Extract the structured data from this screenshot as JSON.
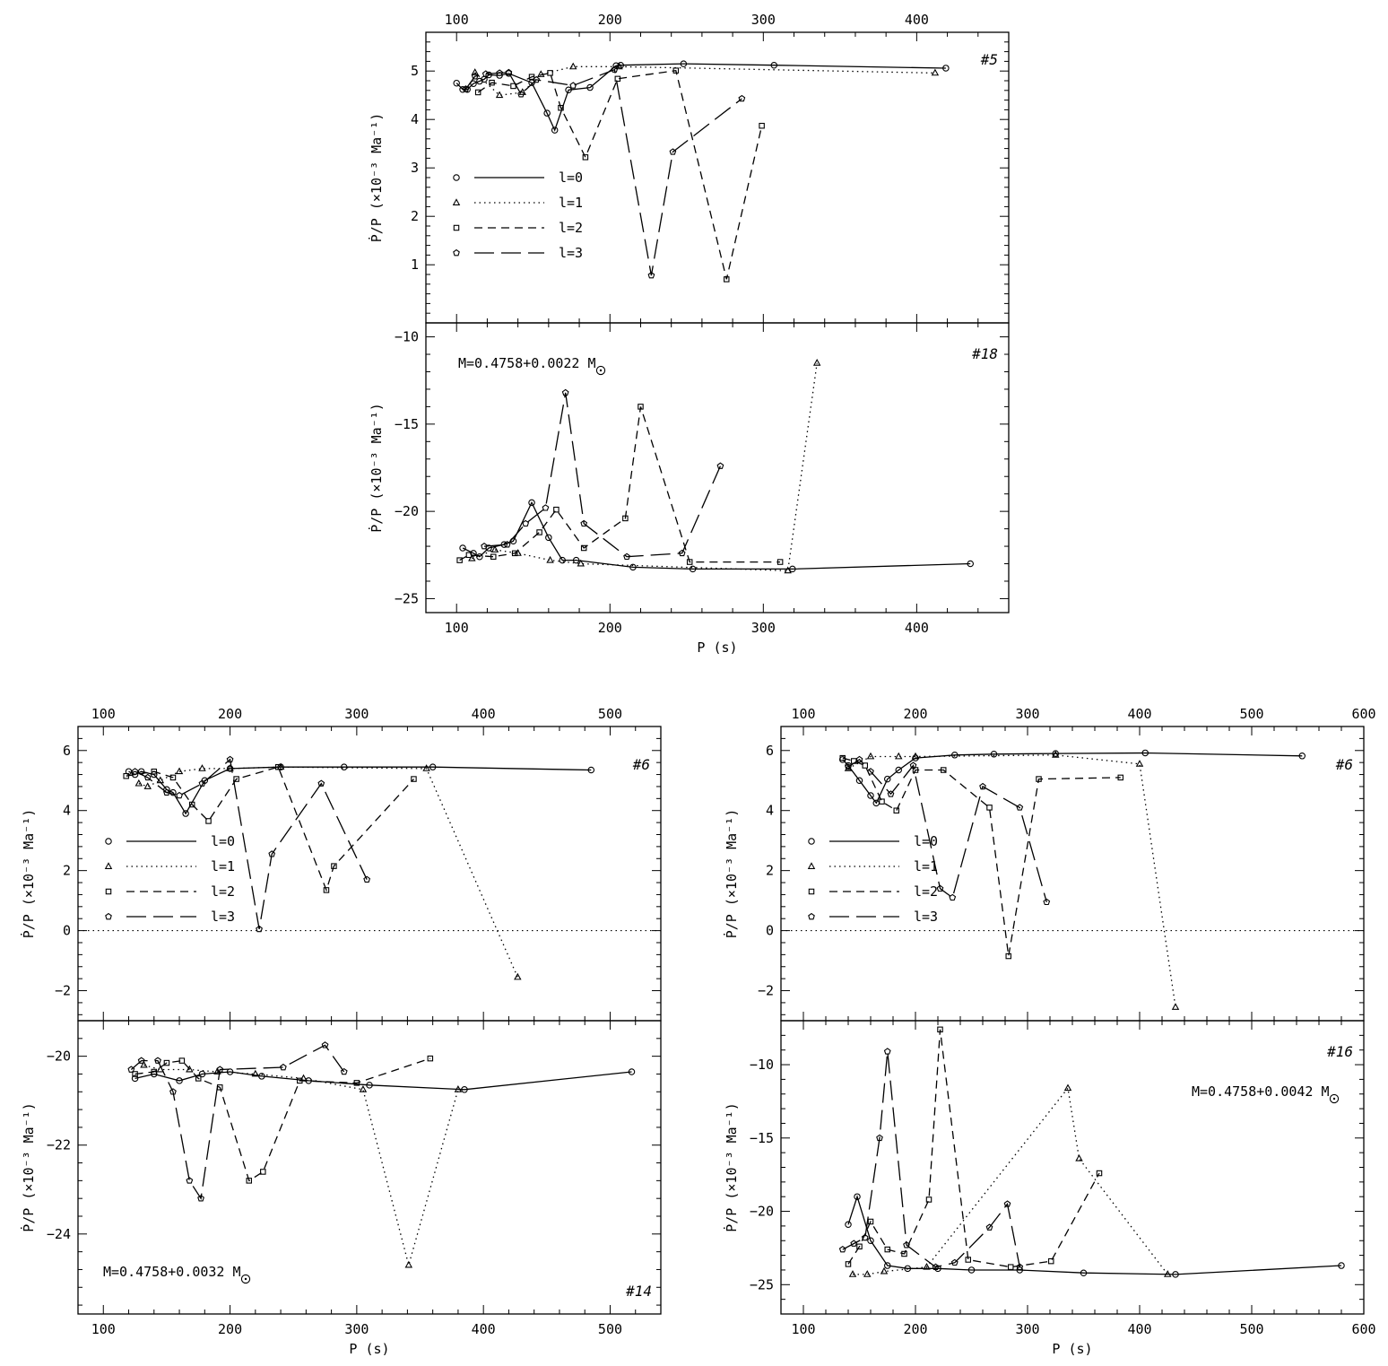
{
  "x_ticks": [
    "100",
    "200",
    "300",
    "400",
    "500",
    "600"
  ],
  "legend_labels": [
    "l=0",
    "l=1",
    "l=2",
    "l=3"
  ],
  "ylabel": "Ṗ/P (×10⁻³ Ma⁻¹)",
  "xlabel": "P (s)",
  "chart_data": [
    {
      "type": "line",
      "panel": "A-top",
      "tag": "#5",
      "xlim": [
        80,
        460
      ],
      "ylim": [
        -0.2,
        5.8
      ],
      "yticks": [
        1,
        2,
        3,
        4,
        5
      ],
      "xticks": [
        100,
        200,
        300,
        400
      ],
      "legend": true,
      "series": [
        {
          "name": "l=0",
          "x": [
            100,
            104,
            107,
            111,
            115,
            118,
            121,
            128,
            134,
            149,
            159,
            164,
            173,
            187,
            204,
            207,
            248,
            307,
            419
          ],
          "y": [
            4.75,
            4.62,
            4.62,
            4.74,
            4.79,
            4.83,
            4.92,
            4.91,
            4.95,
            4.76,
            4.13,
            3.78,
            4.61,
            4.66,
            5.11,
            5.12,
            5.15,
            5.12,
            5.06
          ]
        },
        {
          "name": "l=1",
          "x": [
            112,
            128,
            143,
            155,
            176,
            206,
            412
          ],
          "y": [
            4.97,
            4.5,
            4.56,
            4.93,
            5.09,
            5.09,
            4.96
          ]
        },
        {
          "name": "l=2",
          "x": [
            114,
            123,
            137,
            149,
            161,
            168,
            184,
            205,
            243,
            276,
            299
          ],
          "y": [
            4.56,
            4.76,
            4.69,
            4.88,
            4.96,
            4.24,
            3.22,
            4.84,
            5.01,
            0.7,
            3.87
          ]
        },
        {
          "name": "l=3",
          "x": [
            106,
            112,
            119,
            128,
            134,
            142,
            152,
            176,
            203,
            227,
            241,
            286
          ],
          "y": [
            4.63,
            4.89,
            4.94,
            4.96,
            4.97,
            4.52,
            4.82,
            4.7,
            5.03,
            0.78,
            3.33,
            4.43
          ]
        }
      ]
    },
    {
      "type": "line",
      "panel": "A-bottom",
      "tag": "#18",
      "annotation": "M=0.4758+0.0022 M",
      "xlim": [
        80,
        460
      ],
      "ylim": [
        -25.8,
        -9.2
      ],
      "yticks": [
        -25,
        -20,
        -15,
        -10
      ],
      "xticks": [
        100,
        200,
        300,
        400
      ],
      "xlabel": "P (s)",
      "series": [
        {
          "name": "l=0",
          "x": [
            104,
            111,
            115,
            121,
            131,
            137,
            149,
            160,
            169,
            178,
            215,
            254,
            319,
            435
          ],
          "y": [
            -22.1,
            -22.4,
            -22.6,
            -22.1,
            -21.9,
            -21.7,
            -19.5,
            -21.5,
            -22.8,
            -22.8,
            -23.2,
            -23.3,
            -23.3,
            -23.0
          ]
        },
        {
          "name": "l=1",
          "x": [
            110,
            125,
            140,
            161,
            181,
            316,
            335
          ],
          "y": [
            -22.7,
            -22.2,
            -22.4,
            -22.8,
            -23.0,
            -23.4,
            -11.5
          ]
        },
        {
          "name": "l=2",
          "x": [
            102,
            108,
            124,
            138,
            154,
            165,
            183,
            210,
            220,
            252,
            311
          ],
          "y": [
            -22.8,
            -22.5,
            -22.6,
            -22.4,
            -21.2,
            -19.9,
            -22.1,
            -20.4,
            -14.0,
            -22.9,
            -22.9
          ]
        },
        {
          "name": "l=3",
          "x": [
            118,
            133,
            145,
            158,
            171,
            183,
            211,
            247,
            272
          ],
          "y": [
            -22.0,
            -21.9,
            -20.7,
            -19.8,
            -13.2,
            -20.7,
            -22.6,
            -22.4,
            -17.4
          ]
        }
      ]
    },
    {
      "type": "line",
      "panel": "B-top",
      "tag": "#6",
      "xlim": [
        80,
        540
      ],
      "ylim": [
        -3.0,
        6.8
      ],
      "yticks": [
        -2,
        0,
        2,
        4,
        6
      ],
      "xticks": [
        100,
        200,
        300,
        400,
        500
      ],
      "legend": true,
      "zero_line": true,
      "series": [
        {
          "name": "l=0",
          "x": [
            120,
            125,
            130,
            140,
            150,
            155,
            165,
            180,
            200,
            240,
            290,
            360,
            485
          ],
          "y": [
            5.3,
            5.2,
            5.3,
            5.2,
            4.7,
            4.6,
            3.9,
            5.0,
            5.4,
            5.45,
            5.45,
            5.45,
            5.35
          ]
        },
        {
          "name": "l=1",
          "x": [
            128,
            135,
            145,
            160,
            178,
            200,
            240,
            355,
            427
          ],
          "y": [
            4.9,
            4.8,
            5.0,
            5.3,
            5.4,
            5.4,
            5.45,
            5.4,
            -1.55
          ]
        },
        {
          "name": "l=2",
          "x": [
            118,
            140,
            155,
            170,
            183,
            205,
            238,
            276,
            282,
            345
          ],
          "y": [
            5.15,
            5.3,
            5.1,
            4.2,
            3.65,
            5.05,
            5.45,
            1.35,
            2.15,
            5.05
          ]
        },
        {
          "name": "l=3",
          "x": [
            125,
            135,
            150,
            160,
            178,
            200,
            223,
            233,
            272,
            308
          ],
          "y": [
            5.3,
            5.1,
            4.6,
            4.5,
            4.9,
            5.7,
            0.05,
            2.55,
            4.9,
            1.7
          ]
        }
      ]
    },
    {
      "type": "line",
      "panel": "B-bottom",
      "tag": "#14",
      "annotation": "M=0.4758+0.0032 M",
      "xlim": [
        80,
        540
      ],
      "ylim": [
        -25.8,
        -19.2
      ],
      "yticks": [
        -24,
        -22,
        -20
      ],
      "xticks": [
        100,
        200,
        300,
        400,
        500
      ],
      "xlabel": "P (s)",
      "series": [
        {
          "name": "l=0",
          "x": [
            125,
            140,
            160,
            178,
            200,
            225,
            262,
            310,
            385,
            517
          ],
          "y": [
            -20.5,
            -20.4,
            -20.55,
            -20.4,
            -20.35,
            -20.45,
            -20.55,
            -20.65,
            -20.75,
            -20.35
          ]
        },
        {
          "name": "l=1",
          "x": [
            132,
            145,
            168,
            190,
            220,
            258,
            305,
            341,
            380
          ],
          "y": [
            -20.2,
            -20.3,
            -20.3,
            -20.35,
            -20.4,
            -20.5,
            -20.75,
            -24.7,
            -20.75
          ]
        },
        {
          "name": "l=2",
          "x": [
            125,
            140,
            150,
            162,
            175,
            192,
            215,
            226,
            255,
            300,
            358
          ],
          "y": [
            -20.4,
            -20.35,
            -20.15,
            -20.1,
            -20.5,
            -20.7,
            -22.8,
            -22.6,
            -20.55,
            -20.6,
            -20.05
          ]
        },
        {
          "name": "l=3",
          "x": [
            122,
            130,
            143,
            155,
            168,
            177,
            192,
            242,
            275,
            290
          ],
          "y": [
            -20.3,
            -20.1,
            -20.1,
            -20.8,
            -22.8,
            -23.2,
            -20.3,
            -20.25,
            -19.75,
            -20.35
          ]
        }
      ]
    },
    {
      "type": "line",
      "panel": "C-top",
      "tag": "#6",
      "xlim": [
        80,
        600
      ],
      "ylim": [
        -3.0,
        6.8
      ],
      "yticks": [
        -2,
        0,
        2,
        4,
        6
      ],
      "xticks": [
        100,
        200,
        300,
        400,
        500,
        600
      ],
      "legend": true,
      "zero_line": true,
      "series": [
        {
          "name": "l=0",
          "x": [
            135,
            140,
            150,
            160,
            165,
            175,
            185,
            200,
            235,
            270,
            325,
            405,
            545
          ],
          "y": [
            5.7,
            5.5,
            5.0,
            4.5,
            4.25,
            5.05,
            5.35,
            5.75,
            5.85,
            5.88,
            5.9,
            5.92,
            5.82
          ]
        },
        {
          "name": "l=1",
          "x": [
            140,
            160,
            185,
            200,
            325,
            400,
            432
          ],
          "y": [
            5.4,
            5.8,
            5.8,
            5.8,
            5.85,
            5.55,
            -2.55
          ]
        },
        {
          "name": "l=2",
          "x": [
            135,
            145,
            155,
            170,
            183,
            200,
            225,
            266,
            283,
            310,
            383
          ],
          "y": [
            5.75,
            5.65,
            5.5,
            4.3,
            4.0,
            5.35,
            5.35,
            4.1,
            -0.85,
            5.05,
            5.1
          ]
        },
        {
          "name": "l=3",
          "x": [
            140,
            150,
            160,
            178,
            198,
            222,
            233,
            260,
            293,
            317
          ],
          "y": [
            5.45,
            5.7,
            5.3,
            4.55,
            5.5,
            1.4,
            1.1,
            4.8,
            4.1,
            0.95
          ]
        }
      ]
    },
    {
      "type": "line",
      "panel": "C-bottom",
      "tag": "#16",
      "annotation": "M=0.4758+0.0042 M",
      "xlim": [
        80,
        600
      ],
      "ylim": [
        -27.0,
        -7.0
      ],
      "yticks": [
        -25,
        -20,
        -15,
        -10
      ],
      "xticks": [
        100,
        200,
        300,
        400,
        500,
        600
      ],
      "xlabel": "P (s)",
      "series": [
        {
          "name": "l=0",
          "x": [
            140,
            148,
            160,
            175,
            193,
            220,
            250,
            293,
            350,
            432,
            580
          ],
          "y": [
            -20.9,
            -19.0,
            -22.0,
            -23.7,
            -23.9,
            -23.9,
            -24.0,
            -24.0,
            -24.2,
            -24.3,
            -23.7
          ]
        },
        {
          "name": "l=1",
          "x": [
            144,
            157,
            172,
            210,
            336,
            346,
            425
          ],
          "y": [
            -24.3,
            -24.3,
            -24.1,
            -23.8,
            -11.6,
            -16.4,
            -24.3
          ]
        },
        {
          "name": "l=2",
          "x": [
            140,
            150,
            160,
            175,
            190,
            212,
            222,
            247,
            285,
            321,
            364
          ],
          "y": [
            -23.6,
            -22.4,
            -20.7,
            -22.6,
            -22.9,
            -19.2,
            -7.6,
            -23.3,
            -23.8,
            -23.4,
            -17.4
          ]
        },
        {
          "name": "l=3",
          "x": [
            135,
            145,
            155,
            168,
            175,
            192,
            218,
            235,
            266,
            282,
            293
          ],
          "y": [
            -22.6,
            -22.2,
            -21.8,
            -15.0,
            -9.1,
            -22.3,
            -23.8,
            -23.5,
            -21.1,
            -19.5,
            -23.8
          ]
        }
      ]
    }
  ]
}
